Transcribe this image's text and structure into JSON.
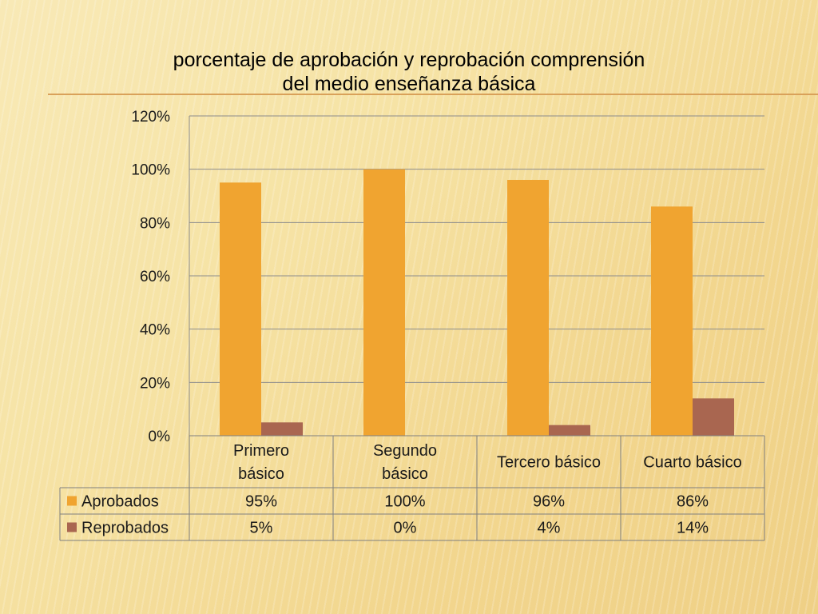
{
  "chart_data": {
    "type": "bar",
    "title": "porcentaje de aprobación y reprobación comprensión del medio enseñanza básica",
    "title_lines": [
      "porcentaje de aprobación y reprobación comprensión",
      "del medio enseñanza básica"
    ],
    "categories": [
      "Primero básico",
      "Segundo básico",
      "Tercero básico",
      "Cuarto básico"
    ],
    "category_label_lines": [
      [
        "Primero",
        "básico"
      ],
      [
        "Segundo",
        "básico"
      ],
      [
        "Tercero básico"
      ],
      [
        "Cuarto básico"
      ]
    ],
    "series": [
      {
        "name": "Aprobados",
        "values": [
          95,
          100,
          96,
          86
        ],
        "labels": [
          "95%",
          "100%",
          "96%",
          "86%"
        ],
        "color": "#F0A430"
      },
      {
        "name": "Reprobados",
        "values": [
          5,
          0,
          4,
          14
        ],
        "labels": [
          "5%",
          "0%",
          "4%",
          "14%"
        ],
        "color": "#A96650"
      }
    ],
    "ylim": [
      0,
      120
    ],
    "yticks": [
      0,
      20,
      40,
      60,
      80,
      100,
      120
    ],
    "ytick_labels": [
      "0%",
      "20%",
      "40%",
      "60%",
      "80%",
      "100%",
      "120%"
    ],
    "grid": true,
    "legend": "data-table"
  }
}
